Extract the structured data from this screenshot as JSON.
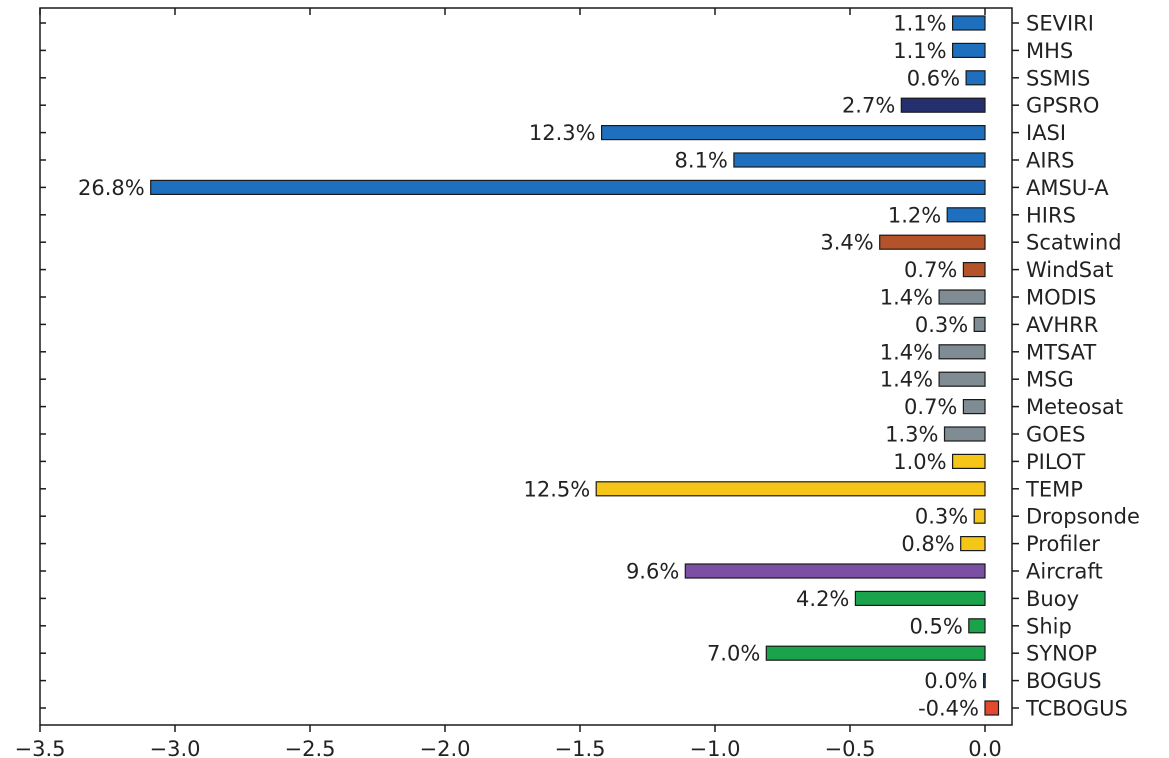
{
  "chart_data": {
    "type": "bar",
    "orientation": "horizontal",
    "categories": [
      "SEVIRI",
      "MHS",
      "SSMIS",
      "GPSRO",
      "IASI",
      "AIRS",
      "AMSU-A",
      "HIRS",
      "Scatwind",
      "WindSat",
      "MODIS",
      "AVHRR",
      "MTSAT",
      "MSG",
      "Meteosat",
      "GOES",
      "PILOT",
      "TEMP",
      "Dropsonde",
      "Profiler",
      "Aircraft",
      "Buoy",
      "Ship",
      "SYNOP",
      "BOGUS",
      "TCBOGUS"
    ],
    "values": [
      -0.12,
      -0.12,
      -0.07,
      -0.31,
      -1.42,
      -0.93,
      -3.09,
      -0.14,
      -0.39,
      -0.08,
      -0.17,
      -0.04,
      -0.17,
      -0.17,
      -0.08,
      -0.15,
      -0.12,
      -1.44,
      -0.04,
      -0.09,
      -1.11,
      -0.48,
      -0.06,
      -0.81,
      -0.005,
      0.05
    ],
    "percent_labels": [
      "1.1%",
      "1.1%",
      "0.6%",
      "2.7%",
      "12.3%",
      "8.1%",
      "26.8%",
      "1.2%",
      "3.4%",
      "0.7%",
      "1.4%",
      "0.3%",
      "1.4%",
      "1.4%",
      "0.7%",
      "1.3%",
      "1.0%",
      "12.5%",
      "0.3%",
      "0.8%",
      "9.6%",
      "4.2%",
      "0.5%",
      "7.0%",
      "0.0%",
      "-0.4%"
    ],
    "colors": [
      "#1f6fbf",
      "#1f6fbf",
      "#1f6fbf",
      "#262f6e",
      "#1f6fbf",
      "#1f6fbf",
      "#1f6fbf",
      "#1f6fbf",
      "#b4532a",
      "#b4532a",
      "#7f8c93",
      "#7f8c93",
      "#7f8c93",
      "#7f8c93",
      "#7f8c93",
      "#7f8c93",
      "#f5c518",
      "#f5c518",
      "#f5c518",
      "#f5c518",
      "#7b4fa3",
      "#1aa34a",
      "#1aa34a",
      "#1aa34a",
      "#1f6fbf",
      "#e2492f"
    ],
    "xticks": [
      "−3.5",
      "−3.0",
      "−2.5",
      "−2.0",
      "−1.5",
      "−1.0",
      "−0.5",
      "0.0"
    ],
    "xlim": [
      -3.5,
      0.1
    ],
    "title": "",
    "xlabel": "",
    "ylabel": "",
    "grid": false,
    "legend": "none"
  }
}
